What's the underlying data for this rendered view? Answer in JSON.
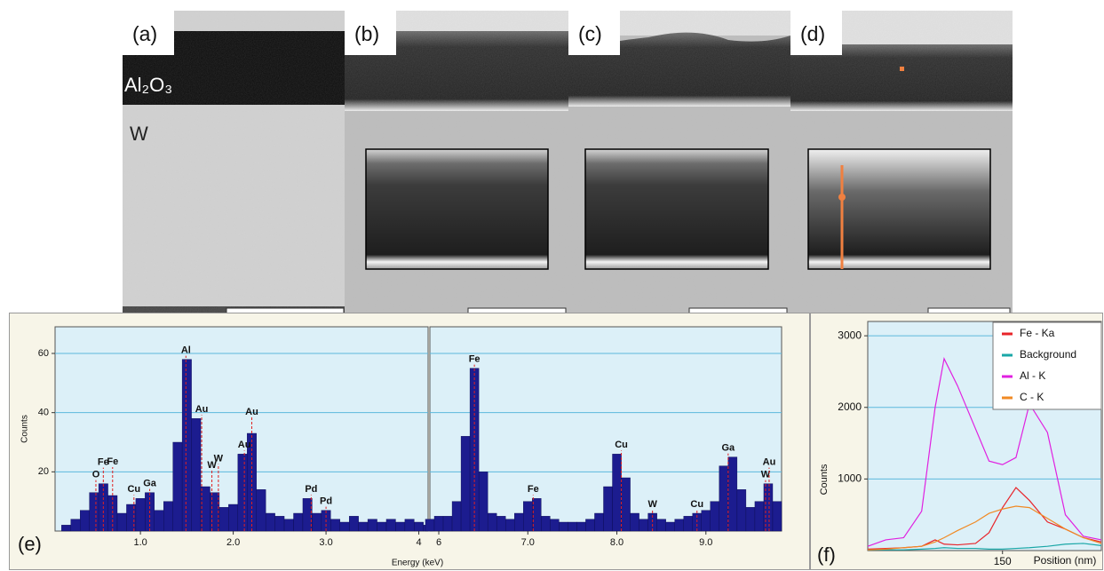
{
  "panels": [
    {
      "label": "(a)"
    },
    {
      "label": "(b)"
    },
    {
      "label": "(c)"
    },
    {
      "label": "(d)"
    }
  ],
  "panel_a_layers": [
    "Al₂O₃",
    "W"
  ],
  "chart_data": [
    {
      "type": "bar",
      "panel_label": "(e)",
      "y_label": "Counts",
      "x_label": "Energy (keV)",
      "color": "#1c1c8f",
      "x": [
        0.1,
        0.2,
        0.3,
        0.4,
        0.5,
        0.6,
        0.7,
        0.8,
        0.9,
        1.0,
        1.1,
        1.2,
        1.3,
        1.4,
        1.5,
        1.6,
        1.7,
        1.8,
        1.9,
        2.0,
        2.1,
        2.2,
        2.3,
        2.4,
        2.5,
        2.6,
        2.7,
        2.8,
        2.9,
        3.0,
        3.1,
        3.2,
        3.3,
        3.4,
        3.5,
        3.6,
        3.7,
        3.8,
        3.9,
        4.0,
        4.1
      ],
      "values": [
        0,
        2,
        4,
        7,
        13,
        16,
        12,
        6,
        9,
        11,
        13,
        7,
        10,
        30,
        58,
        38,
        15,
        13,
        8,
        9,
        26,
        33,
        14,
        6,
        5,
        4,
        6,
        11,
        6,
        7,
        4,
        3,
        5,
        3,
        4,
        3,
        4,
        3,
        4,
        3,
        2
      ],
      "xlim": [
        0.08,
        4.1
      ],
      "xticks": [
        {
          "value": 1,
          "label": "1.0"
        },
        {
          "value": 2,
          "label": "2.0"
        },
        {
          "value": 3,
          "label": "3.0"
        },
        4
      ],
      "ylim": [
        0,
        69
      ],
      "yticks": [
        20,
        40,
        60
      ],
      "grid": true,
      "peak_labels": [
        {
          "text": "O",
          "x": 0.52
        },
        {
          "text": "Fe",
          "x": 0.6
        },
        {
          "text": "Fe",
          "x": 0.7
        },
        {
          "text": "Cu",
          "x": 0.93
        },
        {
          "text": "Ga",
          "x": 1.1
        },
        {
          "text": "Al",
          "x": 1.49
        },
        {
          "text": "Au",
          "x": 1.66
        },
        {
          "text": "W",
          "x": 1.77
        },
        {
          "text": "W",
          "x": 1.84
        },
        {
          "text": "Au",
          "x": 2.12
        },
        {
          "text": "Au",
          "x": 2.2
        },
        {
          "text": "Pd",
          "x": 2.84
        },
        {
          "text": "Pd",
          "x": 3.0
        }
      ]
    },
    {
      "type": "bar",
      "color": "#1c1c8f",
      "x": [
        5.9,
        6.0,
        6.1,
        6.2,
        6.3,
        6.4,
        6.5,
        6.6,
        6.7,
        6.8,
        6.9,
        7.0,
        7.1,
        7.2,
        7.3,
        7.4,
        7.5,
        7.6,
        7.7,
        7.8,
        7.9,
        8.0,
        8.1,
        8.2,
        8.3,
        8.4,
        8.5,
        8.6,
        8.7,
        8.8,
        8.9,
        9.0,
        9.1,
        9.2,
        9.3,
        9.4,
        9.5,
        9.6,
        9.7,
        9.8
      ],
      "values": [
        4,
        5,
        5,
        10,
        32,
        55,
        20,
        6,
        5,
        4,
        6,
        10,
        11,
        5,
        4,
        3,
        3,
        3,
        4,
        6,
        15,
        26,
        18,
        6,
        4,
        6,
        4,
        3,
        4,
        5,
        6,
        7,
        10,
        22,
        25,
        14,
        8,
        10,
        16,
        10
      ],
      "xlim": [
        5.9,
        9.85
      ],
      "xticks": [
        6,
        {
          "value": 7,
          "label": "7.0"
        },
        {
          "value": 8,
          "label": "8.0"
        },
        {
          "value": 9,
          "label": "9.0"
        }
      ],
      "ylim": [
        0,
        69
      ],
      "shared_y": true,
      "grid": true,
      "peak_labels": [
        {
          "text": "Fe",
          "x": 6.4
        },
        {
          "text": "Fe",
          "x": 7.06
        },
        {
          "text": "Cu",
          "x": 8.05
        },
        {
          "text": "W",
          "x": 8.4
        },
        {
          "text": "Cu",
          "x": 8.9
        },
        {
          "text": "Ga",
          "x": 9.25
        },
        {
          "text": "W",
          "x": 9.67
        },
        {
          "text": "Au",
          "x": 9.71
        }
      ]
    },
    {
      "type": "line",
      "panel_label": "(f)",
      "y_label": "Counts",
      "x_label": "Position (nm)",
      "x": [
        0,
        20,
        40,
        60,
        75,
        85,
        100,
        120,
        135,
        150,
        165,
        180,
        200,
        220,
        240,
        260
      ],
      "series": [
        {
          "name": "Fe - Ka",
          "color": "#e8242a",
          "values": [
            20,
            30,
            40,
            60,
            150,
            90,
            80,
            100,
            250,
            600,
            880,
            700,
            400,
            300,
            180,
            120
          ]
        },
        {
          "name": "Background",
          "color": "#1aa7a7",
          "values": [
            10,
            10,
            10,
            20,
            30,
            40,
            30,
            30,
            20,
            20,
            30,
            40,
            60,
            90,
            100,
            70
          ]
        },
        {
          "name": "Al - K",
          "color": "#e020e0",
          "values": [
            60,
            150,
            180,
            550,
            2000,
            2680,
            2300,
            1700,
            1250,
            1200,
            1300,
            2050,
            1650,
            500,
            200,
            150
          ]
        },
        {
          "name": "C - K",
          "color": "#f08a24",
          "values": [
            10,
            20,
            40,
            60,
            120,
            180,
            280,
            400,
            520,
            580,
            620,
            600,
            450,
            300,
            180,
            100
          ]
        }
      ],
      "xlim": [
        0,
        260
      ],
      "xticks": [
        150
      ],
      "ylim": [
        0,
        3200
      ],
      "yticks": [
        1000,
        2000,
        3000
      ],
      "grid": true,
      "legend": "upper right"
    }
  ]
}
